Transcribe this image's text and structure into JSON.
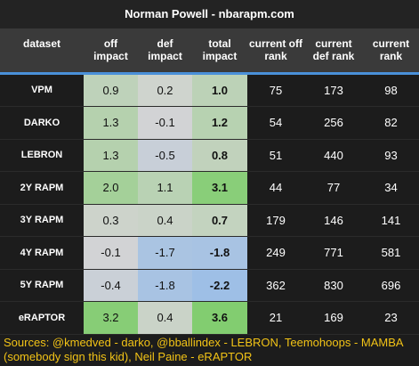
{
  "header": {
    "title": "Norman Powell - nbarapm.com"
  },
  "table": {
    "columns": [
      "dataset",
      "off impact",
      "def impact",
      "total impact",
      "current off rank",
      "current def rank",
      "current rank"
    ],
    "rows": [
      [
        "VPM",
        "0.9",
        "0.2",
        "1.0",
        "75",
        "173",
        "98"
      ],
      [
        "DARKO",
        "1.3",
        "-0.1",
        "1.2",
        "54",
        "256",
        "82"
      ],
      [
        "LEBRON",
        "1.3",
        "-0.5",
        "0.8",
        "51",
        "440",
        "93"
      ],
      [
        "2Y RAPM",
        "2.0",
        "1.1",
        "3.1",
        "44",
        "77",
        "34"
      ],
      [
        "3Y RAPM",
        "0.3",
        "0.4",
        "0.7",
        "179",
        "146",
        "141"
      ],
      [
        "4Y RAPM",
        "-0.1",
        "-1.7",
        "-1.8",
        "249",
        "771",
        "581"
      ],
      [
        "5Y RAPM",
        "-0.4",
        "-1.8",
        "-2.2",
        "362",
        "830",
        "696"
      ],
      [
        "eRAPTOR",
        "3.2",
        "0.4",
        "3.6",
        "21",
        "169",
        "23"
      ]
    ]
  },
  "footer": {
    "sources": "Sources: @kmedved - darko, @bballindex - LEBRON, Teemohoops - MAMBA (somebody sign this kid), Neil Paine - eRAPTOR"
  }
}
